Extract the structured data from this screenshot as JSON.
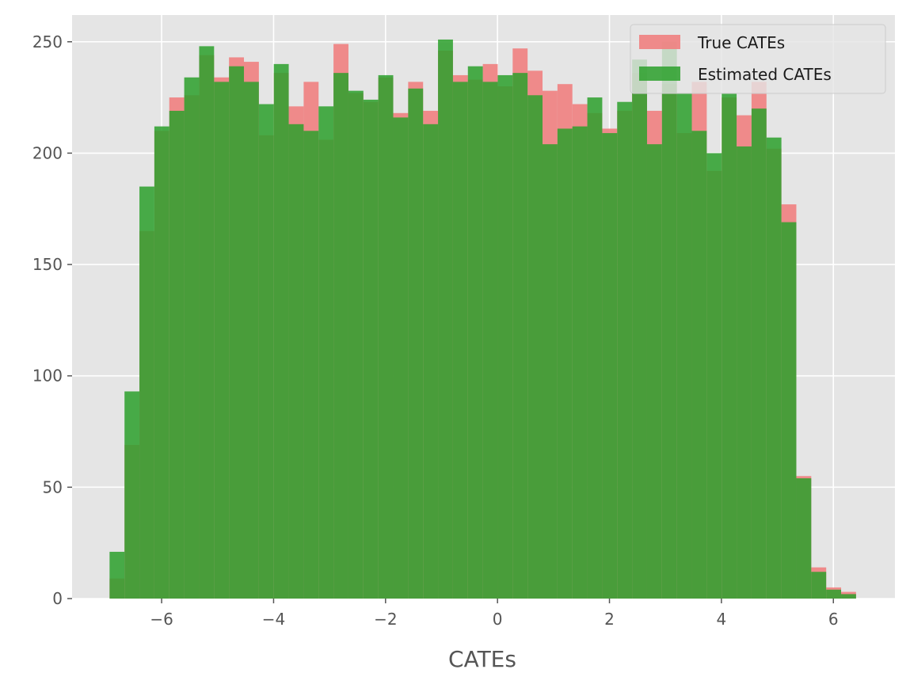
{
  "chart_data": {
    "type": "histogram",
    "xlabel": "CATEs",
    "ylabel": "",
    "xlim": [
      -7.6,
      7.1
    ],
    "ylim": [
      0,
      262
    ],
    "grid": true,
    "style": "ggplot",
    "legend_placement": "top-right",
    "x_ticks": [
      -6,
      -4,
      -2,
      0,
      2,
      4,
      6
    ],
    "x_tick_labels": [
      "−6",
      "−4",
      "−2",
      "0",
      "2",
      "4",
      "6"
    ],
    "y_ticks": [
      0,
      50,
      100,
      150,
      200,
      250
    ],
    "y_tick_labels": [
      "0",
      "50",
      "100",
      "150",
      "200",
      "250"
    ],
    "bins": {
      "start": -6.93,
      "width": 0.2667,
      "count": 50
    },
    "series": [
      {
        "name": "True CATEs",
        "color": "#f08080",
        "opacity": 0.9,
        "values": [
          9,
          69,
          165,
          210,
          225,
          226,
          244,
          234,
          243,
          241,
          208,
          236,
          221,
          232,
          206,
          249,
          227,
          223,
          234,
          218,
          232,
          219,
          246,
          235,
          233,
          240,
          230,
          247,
          237,
          228,
          231,
          222,
          218,
          211,
          219,
          236,
          219,
          231,
          209,
          232,
          192,
          225,
          217,
          232,
          202,
          177,
          55,
          14,
          5,
          3
        ]
      },
      {
        "name": "Estimated CATEs",
        "color": "#2ca02c",
        "opacity": 0.85,
        "values": [
          21,
          93,
          185,
          212,
          219,
          234,
          248,
          232,
          239,
          232,
          222,
          240,
          213,
          210,
          221,
          236,
          228,
          224,
          235,
          216,
          229,
          213,
          251,
          232,
          239,
          232,
          235,
          236,
          226,
          204,
          211,
          212,
          225,
          209,
          223,
          242,
          204,
          250,
          227,
          210,
          200,
          227,
          203,
          220,
          207,
          169,
          54,
          12,
          4,
          2
        ]
      }
    ]
  }
}
